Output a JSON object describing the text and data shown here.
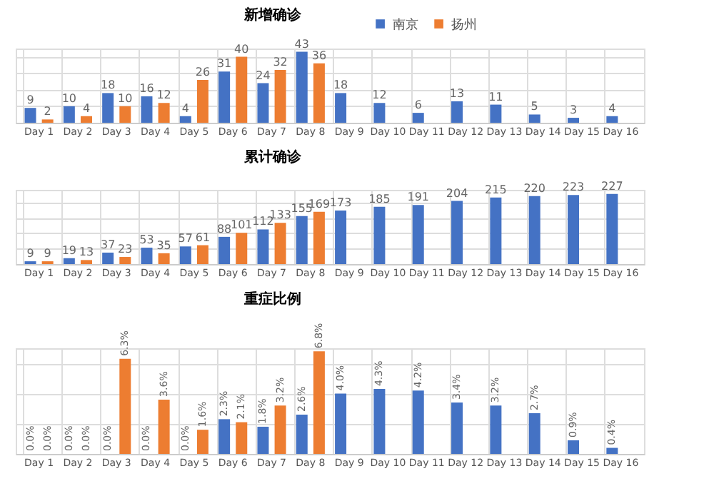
{
  "chart_data": [
    {
      "type": "bar",
      "title": "新增确诊",
      "categories": [
        "Day 1",
        "Day 2",
        "Day 3",
        "Day 4",
        "Day 5",
        "Day 6",
        "Day 7",
        "Day 8",
        "Day 9",
        "Day 10",
        "Day 11",
        "Day 12",
        "Day 13",
        "Day 14",
        "Day 15",
        "Day 16"
      ],
      "series": [
        {
          "name": "南京",
          "color": "#4472c4",
          "values": [
            9,
            10,
            18,
            16,
            4,
            31,
            24,
            43,
            18,
            12,
            6,
            13,
            11,
            5,
            3,
            4
          ]
        },
        {
          "name": "扬州",
          "color": "#ed7d31",
          "values": [
            2,
            4,
            10,
            12,
            26,
            40,
            32,
            36,
            null,
            null,
            null,
            null,
            null,
            null,
            null,
            null
          ]
        }
      ],
      "data_labels": true,
      "legend": "top",
      "grid": true,
      "tick_labels": "x"
    },
    {
      "type": "bar",
      "title": "累计确诊",
      "categories": [
        "Day 1",
        "Day 2",
        "Day 3",
        "Day 4",
        "Day 5",
        "Day 6",
        "Day 7",
        "Day 8",
        "Day 9",
        "Day 10",
        "Day 11",
        "Day 12",
        "Day 13",
        "Day 14",
        "Day 15",
        "Day 16"
      ],
      "series": [
        {
          "name": "南京",
          "color": "#4472c4",
          "values": [
            9,
            19,
            37,
            53,
            57,
            88,
            112,
            155,
            173,
            185,
            191,
            204,
            215,
            220,
            223,
            227
          ]
        },
        {
          "name": "扬州",
          "color": "#ed7d31",
          "values": [
            9,
            13,
            23,
            35,
            61,
            101,
            133,
            169,
            null,
            null,
            null,
            null,
            null,
            null,
            null,
            null
          ]
        }
      ],
      "data_labels": true,
      "legend": "top",
      "grid": true,
      "tick_labels": "x"
    },
    {
      "type": "bar",
      "title": "重症比例",
      "categories": [
        "Day 1",
        "Day 2",
        "Day 3",
        "Day 4",
        "Day 5",
        "Day 6",
        "Day 7",
        "Day 8",
        "Day 9",
        "Day 10",
        "Day 11",
        "Day 12",
        "Day 13",
        "Day 14",
        "Day 15",
        "Day 16"
      ],
      "series": [
        {
          "name": "南京",
          "color": "#4472c4",
          "values": [
            0,
            0,
            0,
            0,
            0,
            2.3,
            1.8,
            2.6,
            4.0,
            4.3,
            4.2,
            3.4,
            3.2,
            2.7,
            0.9,
            0.4
          ],
          "value_labels": [
            "0.0%",
            "0.0%",
            "0.0%",
            "0.0%",
            "0.0%",
            "2.3%",
            "1.8%",
            "2.6%",
            "4.0%",
            "4.3%",
            "4.2%",
            "3.4%",
            "3.2%",
            "2.7%",
            "0.9%",
            "0.4%"
          ]
        },
        {
          "name": "扬州",
          "color": "#ed7d31",
          "values": [
            0,
            0,
            6.3,
            3.6,
            1.6,
            2.1,
            3.2,
            6.8,
            null,
            null,
            null,
            null,
            null,
            null,
            null,
            null
          ],
          "value_labels": [
            "0.0%",
            "0.0%",
            "6.3%",
            "3.6%",
            "1.6%",
            "2.1%",
            "3.2%",
            "6.8%",
            null,
            null,
            null,
            null,
            null,
            null,
            null,
            null
          ]
        }
      ],
      "legend": "top",
      "grid": true,
      "tick_labels": "x"
    }
  ]
}
